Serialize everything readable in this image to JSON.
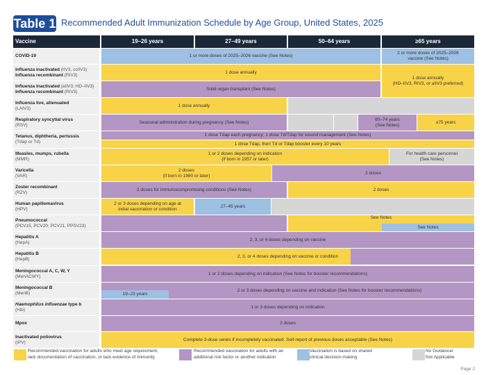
{
  "header": {
    "badge": "Table 1",
    "title": "Recommended Adult Immunization Schedule by Age Group, United States, 2025"
  },
  "columns": [
    "Vaccine",
    "19–26 years",
    "27–49 years",
    "50–64 years",
    "≥65 years"
  ],
  "colors": {
    "yellow": "#f8d347",
    "purple": "#b396c3",
    "blue": "#9dc0e3",
    "gray": "#d6d6d6",
    "header": "#1b2838",
    "brand": "#1f4e99"
  },
  "rows": [
    {
      "name": "COVID-19",
      "sub": "",
      "cells": [
        "1 or more doses of 2025–2026 vaccine (See Notes)",
        "2 or more doses of 2025–2026\nvaccine (See Notes)"
      ]
    },
    {
      "name": "Influenza inactivated",
      "name_extra": " (IIV3, ccIIV3)",
      "name2": "Influenza recombinant",
      "name2_extra": " (RIV3)",
      "cells": [
        "1 dose annually",
        "1 dose annually\n(HD–IIV3, RIV3, or aIIV3 preferred)"
      ]
    },
    {
      "name": "Influenza inactivated",
      "name_extra": " (aIIV3; HD–IIV3)",
      "name2": "Influenza recombinant",
      "name2_extra": " (RIV3)",
      "cells": [
        "Solid organ transplant (See Notes)"
      ]
    },
    {
      "name": "Influenza live, attenuated",
      "sub": "(LAIV3)",
      "cells": [
        "1 dose annually"
      ]
    },
    {
      "name": "Respiratory syncytial virus",
      "sub": "(RSV)",
      "cells": [
        "Seasonal administration during pregnancy (See Notes)",
        "60–74 years\n(See Notes)",
        "≥75 years"
      ]
    },
    {
      "name": "Tetanus, diphtheria, pertussis",
      "sub": "(Tdap or Td)",
      "cells": [
        "1 dose Tdap each pregnancy; 1 dose Td/Tdap for wound management (See Notes)",
        "1 dose Tdap, then Td or Tdap booster every 10 years"
      ]
    },
    {
      "name": "Measles, mumps, rubella",
      "sub": "(MMR)",
      "cells": [
        "1 or 2 doses depending on indication\n(if born in 1957 or later)",
        "For health care personnel\n(See Notes)"
      ]
    },
    {
      "name": "Varicella",
      "sub": "(VAR)",
      "cells": [
        "2 doses\n(if born in 1980 or later)",
        "2 doses"
      ]
    },
    {
      "name": "Zoster recombinant",
      "sub": "(RZV)",
      "cells": [
        "2 doses for immunocompromising conditions (See Notes)",
        "2 doses"
      ]
    },
    {
      "name": "Human papillomavirus",
      "sub": "(HPV)",
      "cells": [
        "2 or 3 doses depending on age at\ninitial vaccination or condition",
        "27–45 years"
      ]
    },
    {
      "name": "Pneumococcal",
      "sub": "(PCV15, PCV20, PCV21, PPSV23)",
      "cells": [
        "See Notes",
        "See Notes"
      ]
    },
    {
      "name": "Hepatitis A",
      "sub": "(HepA)",
      "cells": [
        "2, 3, or 4 doses depending on vaccine"
      ]
    },
    {
      "name": "Hepatitis B",
      "sub": "(HepB)",
      "cells": [
        "2, 3, or 4 doses depending on vaccine or condition"
      ]
    },
    {
      "name": "Meningococcal A, C, W, Y",
      "sub": "(MenACWY)",
      "cells": [
        "1 or 2 doses depending on indication (See Notes for booster recommendations)"
      ]
    },
    {
      "name": "Meningococcal B",
      "sub": "(MenB)",
      "cells": [
        "2 or 3 doses depending on vaccine and indication (See Notes for booster recommendations)",
        "19–23 years"
      ]
    },
    {
      "name": "Haemophilus influenzae",
      "name_extra": " type b",
      "sub": "(Hib)",
      "cells": [
        "1 or 3 doses depending on indication"
      ]
    },
    {
      "name": "Mpox",
      "sub": "",
      "cells": [
        "2 doses"
      ]
    },
    {
      "name": "Inactivated poliovirus",
      "sub": "(IPV)",
      "cells": [
        "Complete 3-dose series if incompletely vaccinated. Self-report of previous doses acceptable (See Notes)"
      ]
    }
  ],
  "legend": [
    "Recommended vaccination for adults who meet age requirement,\nlack documentation of vaccination, or lack evidence of immunity",
    "Recommended vaccination for adults with an\nadditional risk factor or another indication",
    "Vaccination is based on shared\nclinical decision-making",
    "No Guidance/\nNot Applicable"
  ],
  "footer": {
    "page": "Page 2"
  }
}
